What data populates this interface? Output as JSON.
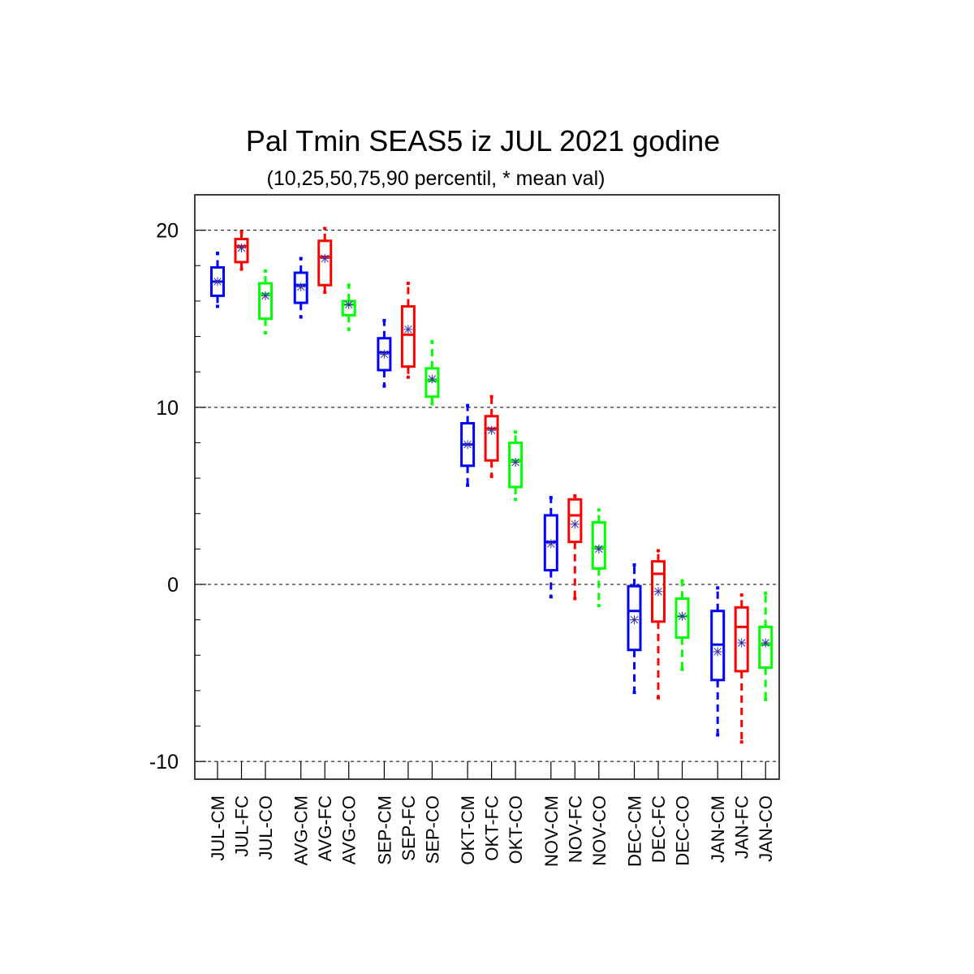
{
  "chart_data": {
    "type": "boxplot",
    "title": "Pal Tmin SEAS5 iz JUL 2021 godine",
    "subtitle": "(10,25,50,75,90 percentil, * mean val)",
    "ylim": [
      -11,
      22
    ],
    "yticks": [
      -10,
      0,
      10,
      20
    ],
    "ytick_labels": [
      "-10",
      "0",
      "10",
      "20"
    ],
    "grid": "dashed horizontal at major ticks",
    "mean_marker_color": "#3030a0",
    "colors": {
      "CM": "#0000ff",
      "FC": "#ff0000",
      "CO": "#00ff00"
    },
    "boxes": [
      {
        "label": "JUL-CM",
        "p10": 15.7,
        "p25": 16.3,
        "p50": 17.1,
        "p75": 17.9,
        "p90": 18.7,
        "mean": 17.1
      },
      {
        "label": "JUL-FC",
        "p10": 17.8,
        "p25": 18.2,
        "p50": 19.1,
        "p75": 19.5,
        "p90": 19.9,
        "mean": 19.0
      },
      {
        "label": "JUL-CO",
        "p10": 14.2,
        "p25": 15.0,
        "p50": 16.4,
        "p75": 17.0,
        "p90": 17.7,
        "mean": 16.3
      },
      {
        "label": "AVG-CM",
        "p10": 15.1,
        "p25": 15.9,
        "p50": 16.9,
        "p75": 17.6,
        "p90": 18.4,
        "mean": 16.8
      },
      {
        "label": "AVG-FC",
        "p10": 16.5,
        "p25": 16.9,
        "p50": 18.5,
        "p75": 19.4,
        "p90": 20.1,
        "mean": 18.4
      },
      {
        "label": "AVG-CO",
        "p10": 14.4,
        "p25": 15.2,
        "p50": 15.8,
        "p75": 16.0,
        "p90": 16.9,
        "mean": 15.8
      },
      {
        "label": "SEP-CM",
        "p10": 11.2,
        "p25": 12.1,
        "p50": 13.1,
        "p75": 13.9,
        "p90": 14.9,
        "mean": 13.0
      },
      {
        "label": "SEP-FC",
        "p10": 11.7,
        "p25": 12.3,
        "p50": 14.1,
        "p75": 15.7,
        "p90": 17.0,
        "mean": 14.4
      },
      {
        "label": "SEP-CO",
        "p10": 10.2,
        "p25": 10.6,
        "p50": 11.5,
        "p75": 12.2,
        "p90": 13.7,
        "mean": 11.6
      },
      {
        "label": "OKT-CM",
        "p10": 5.6,
        "p25": 6.7,
        "p50": 7.9,
        "p75": 9.1,
        "p90": 10.1,
        "mean": 7.9
      },
      {
        "label": "OKT-FC",
        "p10": 6.1,
        "p25": 7.0,
        "p50": 8.8,
        "p75": 9.5,
        "p90": 10.6,
        "mean": 8.7
      },
      {
        "label": "OKT-CO",
        "p10": 4.8,
        "p25": 5.5,
        "p50": 7.0,
        "p75": 8.0,
        "p90": 8.6,
        "mean": 6.9
      },
      {
        "label": "NOV-CM",
        "p10": -0.7,
        "p25": 0.8,
        "p50": 2.4,
        "p75": 3.9,
        "p90": 4.9,
        "mean": 2.3
      },
      {
        "label": "NOV-FC",
        "p10": -0.8,
        "p25": 2.4,
        "p50": 3.9,
        "p75": 4.8,
        "p90": 5.0,
        "mean": 3.4
      },
      {
        "label": "NOV-CO",
        "p10": -1.2,
        "p25": 0.9,
        "p50": 2.1,
        "p75": 3.5,
        "p90": 4.2,
        "mean": 2.0
      },
      {
        "label": "DEC-CM",
        "p10": -6.1,
        "p25": -3.7,
        "p50": -1.5,
        "p75": -0.1,
        "p90": 1.1,
        "mean": -2.0
      },
      {
        "label": "DEC-FC",
        "p10": -6.4,
        "p25": -2.1,
        "p50": 0.6,
        "p75": 1.3,
        "p90": 1.9,
        "mean": -0.4
      },
      {
        "label": "DEC-CO",
        "p10": -4.8,
        "p25": -3.0,
        "p50": -1.8,
        "p75": -0.8,
        "p90": 0.2,
        "mean": -1.8
      },
      {
        "label": "JAN-CM",
        "p10": -8.5,
        "p25": -5.4,
        "p50": -3.4,
        "p75": -1.5,
        "p90": -0.2,
        "mean": -3.8
      },
      {
        "label": "JAN-FC",
        "p10": -8.9,
        "p25": -4.9,
        "p50": -2.4,
        "p75": -1.3,
        "p90": -0.6,
        "mean": -3.3
      },
      {
        "label": "JAN-CO",
        "p10": -6.5,
        "p25": -4.7,
        "p50": -3.4,
        "p75": -2.4,
        "p90": -0.5,
        "mean": -3.3
      }
    ]
  }
}
